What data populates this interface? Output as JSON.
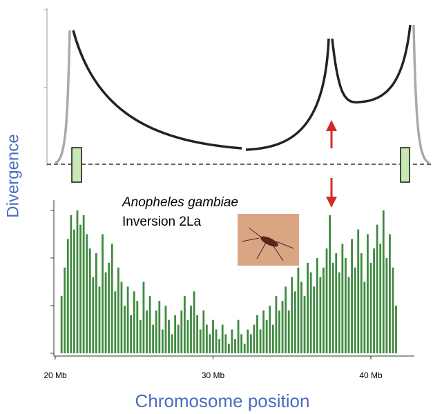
{
  "chart_data": {
    "type": "bar",
    "ylabel": "Divergence",
    "xlabel": "Chromosome position",
    "annotations": [
      "Anopheles gambiae",
      "Inversion 2La"
    ],
    "color": "#3f8a3f",
    "xlim": [
      19.8,
      43
    ],
    "ylim": [
      0,
      3.1
    ],
    "yticks": [
      0,
      1,
      2,
      3
    ],
    "xticks": [
      {
        "value": 20,
        "label": "20 Mb"
      },
      {
        "value": 30,
        "label": "30 Mb"
      },
      {
        "value": 40,
        "label": "40 Mb"
      }
    ],
    "x": [
      20.4,
      20.6,
      20.8,
      21.0,
      21.2,
      21.4,
      21.6,
      21.8,
      22.0,
      22.2,
      22.4,
      22.6,
      22.8,
      23.0,
      23.2,
      23.4,
      23.6,
      23.8,
      24.0,
      24.2,
      24.4,
      24.6,
      24.8,
      25.0,
      25.2,
      25.4,
      25.6,
      25.8,
      26.0,
      26.2,
      26.4,
      26.6,
      26.8,
      27.0,
      27.2,
      27.4,
      27.6,
      27.8,
      28.0,
      28.2,
      28.4,
      28.6,
      28.8,
      29.0,
      29.2,
      29.4,
      29.6,
      29.8,
      30.0,
      30.2,
      30.4,
      30.6,
      30.8,
      31.0,
      31.2,
      31.4,
      31.6,
      31.8,
      32.0,
      32.2,
      32.4,
      32.6,
      32.8,
      33.0,
      33.2,
      33.4,
      33.6,
      33.8,
      34.0,
      34.2,
      34.4,
      34.6,
      34.8,
      35.0,
      35.2,
      35.4,
      35.6,
      35.8,
      36.0,
      36.2,
      36.4,
      36.6,
      36.8,
      37.0,
      37.2,
      37.4,
      37.6,
      37.8,
      38.0,
      38.2,
      38.4,
      38.6,
      38.8,
      39.0,
      39.2,
      39.4,
      39.6,
      39.8,
      40.0,
      40.2,
      40.4,
      40.6,
      40.8,
      41.0,
      41.2,
      41.4,
      41.6
    ],
    "values": [
      1.2,
      1.8,
      2.4,
      2.9,
      2.6,
      3.0,
      2.7,
      2.9,
      2.5,
      2.2,
      1.6,
      2.1,
      1.4,
      2.5,
      1.7,
      1.9,
      2.3,
      1.3,
      1.8,
      1.5,
      1.0,
      1.4,
      0.8,
      1.3,
      1.1,
      0.7,
      1.5,
      0.9,
      1.2,
      0.6,
      0.9,
      1.1,
      0.5,
      1.0,
      0.7,
      0.4,
      0.8,
      0.6,
      0.9,
      1.2,
      0.7,
      1.0,
      1.3,
      0.8,
      0.5,
      0.9,
      0.6,
      0.4,
      0.7,
      0.5,
      0.3,
      0.6,
      0.4,
      0.2,
      0.5,
      0.3,
      0.7,
      0.4,
      0.2,
      0.5,
      0.4,
      0.6,
      0.8,
      0.5,
      0.9,
      0.7,
      1.0,
      0.6,
      1.2,
      0.9,
      1.1,
      1.4,
      0.9,
      1.6,
      1.3,
      1.8,
      1.5,
      1.2,
      1.9,
      1.7,
      1.4,
      2.0,
      1.6,
      1.8,
      2.2,
      2.9,
      1.9,
      2.1,
      1.7,
      2.3,
      2.0,
      1.6,
      2.4,
      1.8,
      2.6,
      2.1,
      1.5,
      2.5,
      1.9,
      2.2,
      2.7,
      2.3,
      3.0,
      2.0,
      2.5,
      1.8,
      1.0
    ]
  }
}
